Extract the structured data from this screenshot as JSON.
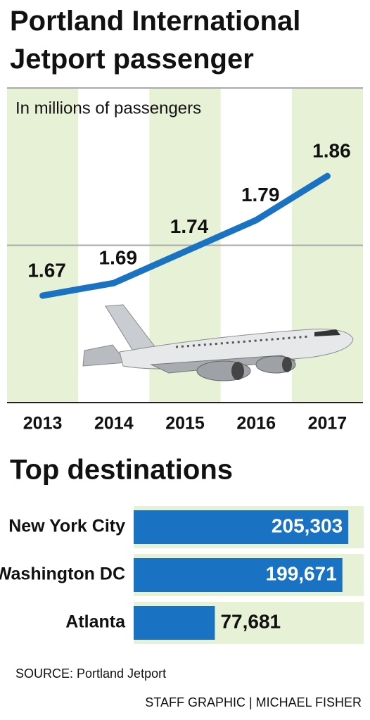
{
  "chart_data": [
    {
      "type": "line",
      "title": "Portland International Jetport passenger",
      "subtitle": "In millions of passengers",
      "categories": [
        "2013",
        "2014",
        "2015",
        "2016",
        "2017"
      ],
      "values": [
        1.67,
        1.69,
        1.74,
        1.79,
        1.86
      ],
      "color": "#1a72c2",
      "band_color": "#e7f1d6",
      "ylim": [
        1.5,
        2.0
      ],
      "gridlines": [
        1.75,
        2.0
      ]
    },
    {
      "type": "hbar",
      "title": "Top destinations",
      "categories": [
        "New York City",
        "Washington DC",
        "Atlanta"
      ],
      "values": [
        205303,
        199671,
        77681
      ],
      "value_labels": [
        "205,303",
        "199,671",
        "77,681"
      ],
      "color": "#1a72c2",
      "band_color": "#e7f1d6",
      "xlim": [
        0,
        220000
      ]
    }
  ],
  "source": "SOURCE: Portland Jetport",
  "credit": "STAFF GRAPHIC | MICHAEL FISHER"
}
